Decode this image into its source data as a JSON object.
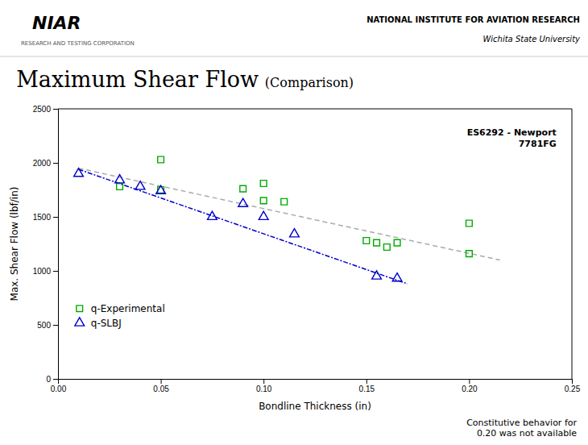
{
  "chart_data": {
    "type": "scatter",
    "title": "Maximum Shear Flow",
    "subtitle": "(Comparison)",
    "x_label": "Bondline Thickness (in)",
    "y_label": "Max. Shear Flow (lbf/in)",
    "xlim": [
      0.0,
      0.25
    ],
    "ylim": [
      0,
      2500
    ],
    "xticks": [
      {
        "value": 0,
        "label": "0.00"
      },
      0.05,
      {
        "value": 0.1,
        "label": "0.10"
      },
      0.15,
      {
        "value": 0.2,
        "label": "0.20"
      },
      0.25
    ],
    "yticks": [
      0,
      500,
      1000,
      1500,
      2000,
      2500
    ],
    "grid": false,
    "legend": "lower left",
    "annotations": [
      "NIAR",
      "RESEARCH AND TESTING CORPORATION",
      "NATIONAL INSTITUTE FOR AVIATION RESEARCH",
      "Wichita State University",
      "ES6292 - Newport\n7781FG",
      "Constitutive behavior for\n0.20 was not available"
    ],
    "series": [
      {
        "name": "q-Experimental",
        "type": "scatter",
        "marker": "square",
        "color": "#00AA00",
        "x": [
          0.03,
          0.05,
          0.05,
          0.09,
          0.1,
          0.1,
          0.11,
          0.15,
          0.155,
          0.16,
          0.165,
          0.2,
          0.2
        ],
        "values": [
          1780,
          2030,
          1750,
          1760,
          1650,
          1810,
          1640,
          1280,
          1260,
          1220,
          1260,
          1440,
          1160
        ]
      },
      {
        "name": "q-SLBJ",
        "type": "scatter",
        "marker": "triangle",
        "color": "#0000CC",
        "x": [
          0.01,
          0.03,
          0.04,
          0.05,
          0.075,
          0.09,
          0.1,
          0.115,
          0.155,
          0.165
        ],
        "values": [
          1900,
          1840,
          1780,
          1740,
          1500,
          1620,
          1500,
          1340,
          950,
          930
        ]
      },
      {
        "type": "line",
        "line_style": "dashed",
        "color": "#AAAAAA",
        "x": [
          0.01,
          0.215
        ],
        "values": [
          1950,
          1100
        ]
      },
      {
        "type": "line",
        "line_style": "dashdot",
        "color": "#0000CC",
        "x": [
          0.01,
          0.17
        ],
        "values": [
          1940,
          880
        ]
      }
    ]
  }
}
